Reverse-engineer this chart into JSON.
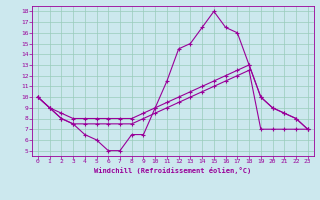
{
  "xlabel": "Windchill (Refroidissement éolien,°C)",
  "bg_color": "#cce8ee",
  "grid_color": "#99ccbb",
  "line_color": "#990099",
  "xlim_min": -0.5,
  "xlim_max": 23.5,
  "ylim_min": 4.5,
  "ylim_max": 18.5,
  "xticks": [
    0,
    1,
    2,
    3,
    4,
    5,
    6,
    7,
    8,
    9,
    10,
    11,
    12,
    13,
    14,
    15,
    16,
    17,
    18,
    19,
    20,
    21,
    22,
    23
  ],
  "yticks": [
    5,
    6,
    7,
    8,
    9,
    10,
    11,
    12,
    13,
    14,
    15,
    16,
    17,
    18
  ],
  "line1_x": [
    0,
    1,
    2,
    3,
    4,
    5,
    6,
    7,
    8,
    9,
    10,
    11,
    12,
    13,
    14,
    15,
    16,
    17,
    18,
    19,
    20,
    21,
    22,
    23
  ],
  "line1_y": [
    10,
    9,
    8,
    7.5,
    6.5,
    6,
    5,
    5,
    6.5,
    6.5,
    9,
    11.5,
    14.5,
    15,
    16.5,
    18,
    16.5,
    16,
    13,
    10,
    9,
    8.5,
    8,
    7
  ],
  "line2_x": [
    0,
    1,
    2,
    3,
    4,
    5,
    6,
    7,
    8,
    9,
    10,
    11,
    12,
    13,
    14,
    15,
    16,
    17,
    18,
    19,
    20,
    21,
    22,
    23
  ],
  "line2_y": [
    10,
    9,
    8.5,
    8,
    8,
    8,
    8,
    8,
    8,
    8.5,
    9,
    9.5,
    10,
    10.5,
    11,
    11.5,
    12,
    12.5,
    13,
    10,
    9,
    8.5,
    8,
    7
  ],
  "line3_x": [
    0,
    1,
    2,
    3,
    4,
    5,
    6,
    7,
    8,
    9,
    10,
    11,
    12,
    13,
    14,
    15,
    16,
    17,
    18,
    19,
    20,
    21,
    22,
    23
  ],
  "line3_y": [
    10,
    9,
    8,
    7.5,
    7.5,
    7.5,
    7.5,
    7.5,
    7.5,
    8,
    8.5,
    9,
    9.5,
    10,
    10.5,
    11,
    11.5,
    12,
    12.5,
    7,
    7,
    7,
    7,
    7
  ]
}
